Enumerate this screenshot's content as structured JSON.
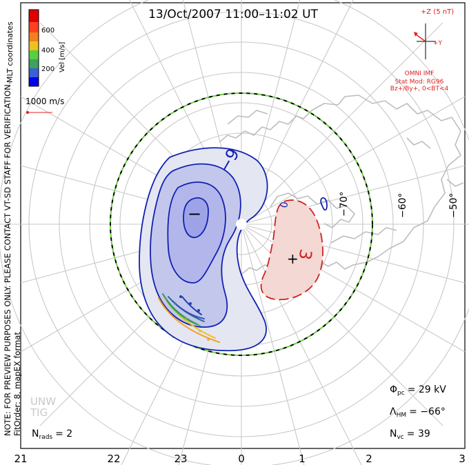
{
  "title": "13/Oct/2007 11:00–11:02 UT",
  "colorbar": {
    "label": "Vel [m/s]",
    "ticks": [
      "600",
      "400",
      "200"
    ],
    "colors": [
      "#0000ee",
      "#3a5fd6",
      "#3fa060",
      "#55d040",
      "#f0c020",
      "#f08020",
      "#ff4020",
      "#e00000"
    ]
  },
  "coordinates_label": "MLT coordinates",
  "vector_scale": "1000 m/s",
  "side_note": "NOTE: FOR PREVIEW PURPOSES ONLY. PLEASE CONTACT VT-SD STAFF FOR VERIFICATION.",
  "fit_order": "FitOrder: 8, mapEX format",
  "imf": {
    "z_label": "+Z (5 nT)",
    "y_label": "+Y",
    "source": "OMNI IMF",
    "model_line1": "Stat Mod: RG96",
    "model_line2": "Bz+/By+, 0<BT<4"
  },
  "contour_labels": {
    "neg_label": "−9",
    "pos_label": "3",
    "min_marker": "−",
    "max_marker": "+",
    "zero_label": "0"
  },
  "latitude_labels": [
    "−70°",
    "−60°",
    "−50°"
  ],
  "mlt_labels": [
    "21",
    "22",
    "23",
    "0",
    "1",
    "2",
    "3"
  ],
  "watermark": [
    "UNW",
    "TIG"
  ],
  "stats": {
    "phi_pc_symbol": "Φ",
    "phi_pc_sub": "pc",
    "phi_pc_value": "= 29 kV",
    "lambda_hm_symbol": "Λ",
    "lambda_hm_sub": "HM",
    "lambda_hm_value": "= −66°",
    "n_vc_symbol": "N",
    "n_vc_sub": "vc",
    "n_vc_value": "= 39",
    "n_rads_symbol": "N",
    "n_rads_sub": "rads",
    "n_rads_value": "= 2"
  },
  "colors": {
    "neg_cell_fill": "#e4e6f2",
    "neg_cell_mid": "#c4c7ec",
    "neg_cell_inner": "#a8aceb",
    "neg_contour": "#1020b0",
    "pos_cell_fill": "#f3d8d4",
    "pos_contour": "#d02020",
    "imf_color": "#e02020",
    "coastline": "#c0c0c0",
    "grid": "#c8c8c8"
  }
}
